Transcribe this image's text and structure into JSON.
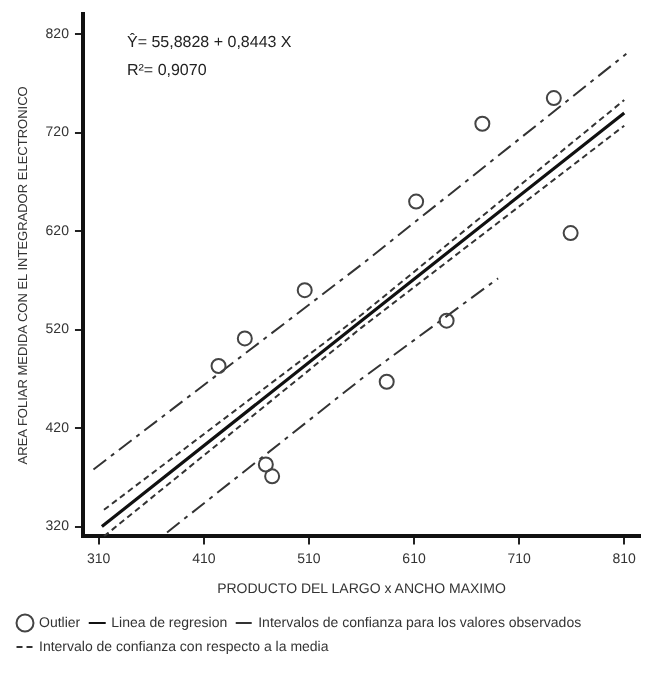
{
  "chart_data": {
    "type": "scatter",
    "xlabel": "PRODUCTO DEL LARGO x ANCHO MAXIMO",
    "ylabel": "AREA FOLIAR MEDIDA CON EL INTEGRADOR ELECTRONICO",
    "xlim": [
      295,
      825
    ],
    "xticks": [
      310,
      410,
      510,
      610,
      710,
      810
    ],
    "ylim": [
      310,
      840
    ],
    "yticks": [
      320,
      420,
      520,
      620,
      720,
      820
    ],
    "grid": false,
    "legend": "bottom",
    "annotations": [
      "Ŷ= 55,8828 + 0,8443 X",
      "R²= 0,9070"
    ],
    "series": [
      {
        "name": "Outlier",
        "type": "scatter",
        "marker": "circle",
        "color": "#444444",
        "x": [
          743,
          675,
          612,
          759,
          506,
          449,
          424,
          641,
          584,
          469,
          475
        ],
        "values": [
          755,
          729,
          650,
          618,
          560,
          511,
          483,
          529,
          467,
          383,
          371
        ]
      },
      {
        "name": "Linea de regresion",
        "type": "line",
        "marker": "none",
        "line_style": "solid",
        "color": "#111111",
        "x": [
          313,
          560,
          810
        ],
        "values": [
          320,
          529,
          740
        ]
      },
      {
        "name": "Intervalos de confianza para los valores observados",
        "type": "line",
        "marker": "none",
        "line_style": "dashed",
        "color": "#333333",
        "x": [
          305,
          560,
          812
        ],
        "values": [
          378,
          586,
          800
        ]
      },
      {
        "type": "line",
        "marker": "none",
        "line_style": "dashed",
        "color": "#333333",
        "x": [
          375,
          560,
          690
        ],
        "values": [
          314,
          470,
          572
        ]
      },
      {
        "name": "Intervalo de confianza con respecto a la media",
        "type": "line",
        "marker": "none",
        "line_style": "dotted",
        "color": "#333333",
        "x": [
          315,
          560,
          810
        ],
        "values": [
          337,
          535,
          753
        ]
      },
      {
        "type": "line",
        "marker": "none",
        "line_style": "dotted",
        "color": "#333333",
        "x": [
          315,
          560,
          810
        ],
        "values": [
          310,
          522,
          727
        ]
      }
    ]
  }
}
